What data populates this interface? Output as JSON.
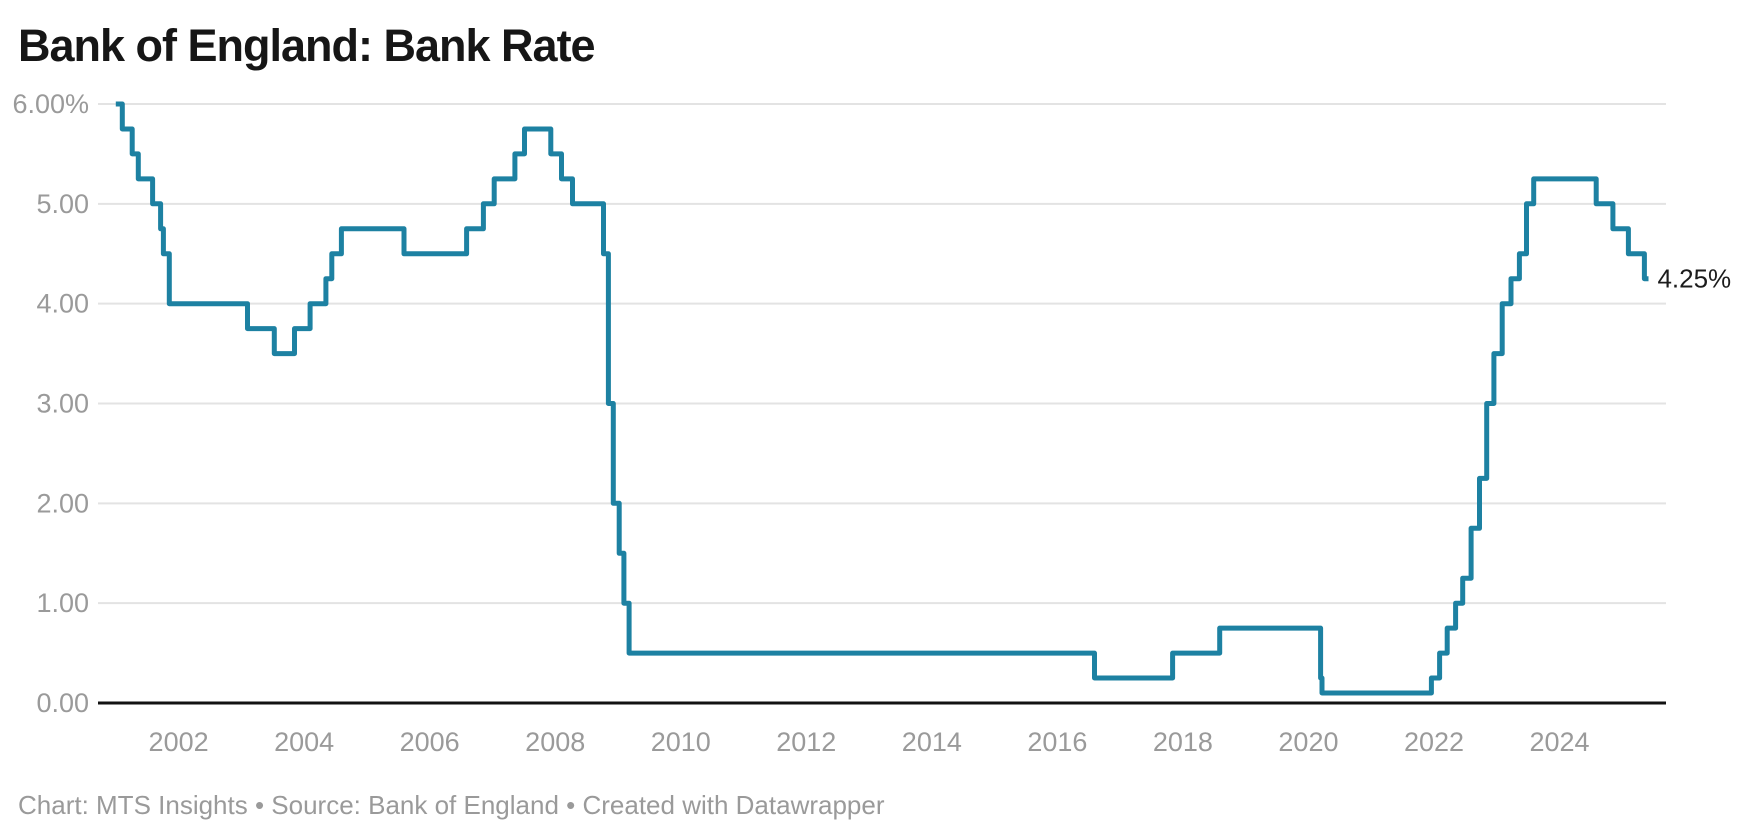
{
  "header": {
    "title": "Bank of England: Bank Rate"
  },
  "footer": {
    "text": "Chart: MTS Insights • Source: Bank of England • Created with Datawrapper"
  },
  "chart_data": {
    "type": "line",
    "step": "after",
    "title": "Bank of England: Bank Rate",
    "xlabel": "",
    "ylabel": "",
    "unit": "%",
    "grid": "horizontal",
    "legend_position": "none",
    "x_domain": [
      2000.716,
      2025.696
    ],
    "y_domain": [
      0,
      6
    ],
    "x_ticks": [
      {
        "value": 2002,
        "label": "2002"
      },
      {
        "value": 2004,
        "label": "2004"
      },
      {
        "value": 2006,
        "label": "2006"
      },
      {
        "value": 2008,
        "label": "2008"
      },
      {
        "value": 2010,
        "label": "2010"
      },
      {
        "value": 2012,
        "label": "2012"
      },
      {
        "value": 2014,
        "label": "2014"
      },
      {
        "value": 2016,
        "label": "2016"
      },
      {
        "value": 2018,
        "label": "2018"
      },
      {
        "value": 2020,
        "label": "2020"
      },
      {
        "value": 2022,
        "label": "2022"
      },
      {
        "value": 2024,
        "label": "2024"
      }
    ],
    "y_ticks": [
      {
        "value": 6,
        "label": "6.00%"
      },
      {
        "value": 5,
        "label": "5.00"
      },
      {
        "value": 4,
        "label": "4.00"
      },
      {
        "value": 3,
        "label": "3.00"
      },
      {
        "value": 2,
        "label": "2.00"
      },
      {
        "value": 1,
        "label": "1.00"
      },
      {
        "value": 0,
        "label": "0.00"
      }
    ],
    "series": [
      {
        "name": "Bank Rate",
        "end_label": "4.25%",
        "end_date": "2025-06-01",
        "points": [
          [
            "2001-01-01",
            6.0
          ],
          [
            "2001-02-08",
            5.75
          ],
          [
            "2001-04-05",
            5.5
          ],
          [
            "2001-05-10",
            5.25
          ],
          [
            "2001-08-02",
            5.0
          ],
          [
            "2001-09-18",
            4.75
          ],
          [
            "2001-10-04",
            4.5
          ],
          [
            "2001-11-08",
            4.0
          ],
          [
            "2003-02-06",
            3.75
          ],
          [
            "2003-07-10",
            3.5
          ],
          [
            "2003-11-06",
            3.75
          ],
          [
            "2004-02-05",
            4.0
          ],
          [
            "2004-05-06",
            4.25
          ],
          [
            "2004-06-10",
            4.5
          ],
          [
            "2004-08-05",
            4.75
          ],
          [
            "2005-08-04",
            4.5
          ],
          [
            "2006-08-03",
            4.75
          ],
          [
            "2006-11-09",
            5.0
          ],
          [
            "2007-01-11",
            5.25
          ],
          [
            "2007-05-10",
            5.5
          ],
          [
            "2007-07-05",
            5.75
          ],
          [
            "2007-12-06",
            5.5
          ],
          [
            "2008-02-07",
            5.25
          ],
          [
            "2008-04-10",
            5.0
          ],
          [
            "2008-10-08",
            4.5
          ],
          [
            "2008-11-06",
            3.0
          ],
          [
            "2008-12-04",
            2.0
          ],
          [
            "2009-01-08",
            1.5
          ],
          [
            "2009-02-05",
            1.0
          ],
          [
            "2009-03-05",
            0.5
          ],
          [
            "2016-08-04",
            0.25
          ],
          [
            "2017-11-02",
            0.5
          ],
          [
            "2018-08-02",
            0.75
          ],
          [
            "2020-03-11",
            0.25
          ],
          [
            "2020-03-19",
            0.1
          ],
          [
            "2021-12-16",
            0.25
          ],
          [
            "2022-02-03",
            0.5
          ],
          [
            "2022-03-17",
            0.75
          ],
          [
            "2022-05-05",
            1.0
          ],
          [
            "2022-06-16",
            1.25
          ],
          [
            "2022-08-04",
            1.75
          ],
          [
            "2022-09-22",
            2.25
          ],
          [
            "2022-11-03",
            3.0
          ],
          [
            "2022-12-15",
            3.5
          ],
          [
            "2023-02-02",
            4.0
          ],
          [
            "2023-03-23",
            4.25
          ],
          [
            "2023-05-11",
            4.5
          ],
          [
            "2023-06-22",
            5.0
          ],
          [
            "2023-08-03",
            5.25
          ],
          [
            "2024-08-01",
            5.0
          ],
          [
            "2024-11-07",
            4.75
          ],
          [
            "2025-02-06",
            4.5
          ],
          [
            "2025-05-08",
            4.25
          ]
        ]
      }
    ],
    "colors": {
      "line": "#1d81a2",
      "grid": "#e3e3e3",
      "baseline": "#121212",
      "tick_label": "#9a9a9a",
      "end_label": "#1c1c1c",
      "background": "#ffffff"
    }
  }
}
